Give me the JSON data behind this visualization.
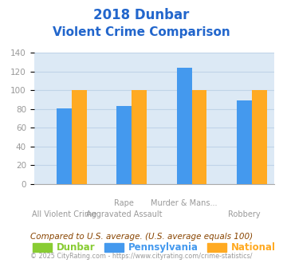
{
  "title_line1": "2018 Dunbar",
  "title_line2": "Violent Crime Comparison",
  "title_color": "#2266cc",
  "dunbar_values": [
    0,
    0,
    0,
    0
  ],
  "pennsylvania_values": [
    81,
    83,
    124,
    89
  ],
  "national_values": [
    100,
    100,
    100,
    100
  ],
  "n_groups": 4,
  "ylim": [
    0,
    140
  ],
  "yticks": [
    0,
    20,
    40,
    60,
    80,
    100,
    120,
    140
  ],
  "background_color": "#dce9f5",
  "grid_color": "#c0d4e8",
  "bar_color_dunbar": "#88cc33",
  "bar_color_pennsylvania": "#4499ee",
  "bar_color_national": "#ffaa22",
  "footer_text": "Compared to U.S. average. (U.S. average equals 100)",
  "footer_color": "#884400",
  "copyright_text": "© 2025 CityRating.com - https://www.cityrating.com/crime-statistics/",
  "copyright_color": "#999999",
  "tick_label_color": "#999999",
  "xtick_row1": [
    "",
    "Rape",
    "Murder & Mans...",
    ""
  ],
  "xtick_row2": [
    "All Violent Crime",
    "Aggravated Assault",
    "",
    "Robbery"
  ]
}
